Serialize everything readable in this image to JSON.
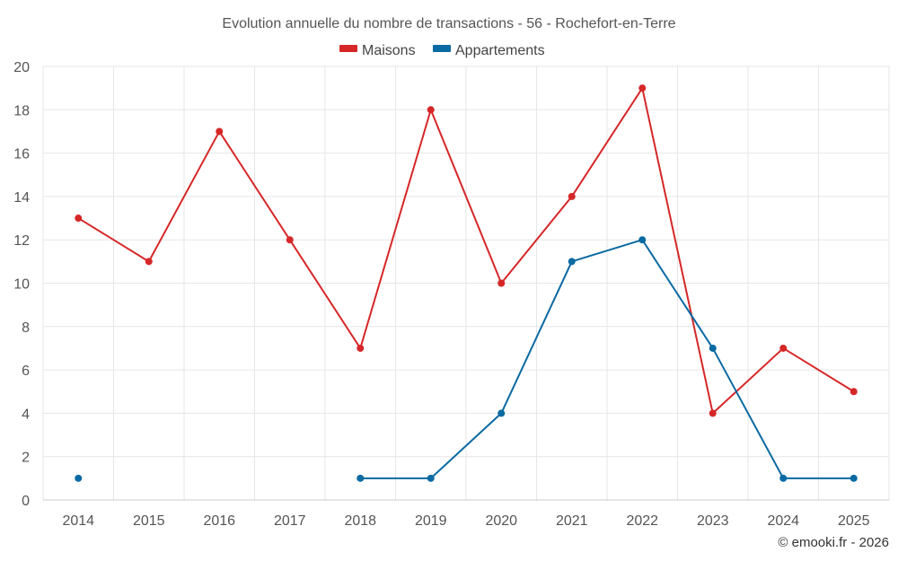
{
  "chart_data": {
    "type": "line",
    "title": "Evolution annuelle du nombre de transactions - 56 - Rochefort-en-Terre",
    "categories": [
      "2014",
      "2015",
      "2016",
      "2017",
      "2018",
      "2019",
      "2020",
      "2021",
      "2022",
      "2023",
      "2024",
      "2025"
    ],
    "ylim": [
      0,
      20
    ],
    "yticks": [
      0,
      2,
      4,
      6,
      8,
      10,
      12,
      14,
      16,
      18,
      20
    ],
    "grid": true,
    "legend_position": "top-center",
    "series": [
      {
        "name": "Maisons",
        "color": "#d62728",
        "values": [
          13,
          11,
          17,
          12,
          7,
          18,
          10,
          14,
          19,
          4,
          7,
          5
        ]
      },
      {
        "name": "Appartements",
        "color": "#0b6aa2",
        "values": [
          1,
          null,
          null,
          null,
          1,
          1,
          4,
          11,
          12,
          7,
          1,
          1
        ]
      }
    ],
    "credit": "© emooki.fr - 2026"
  }
}
